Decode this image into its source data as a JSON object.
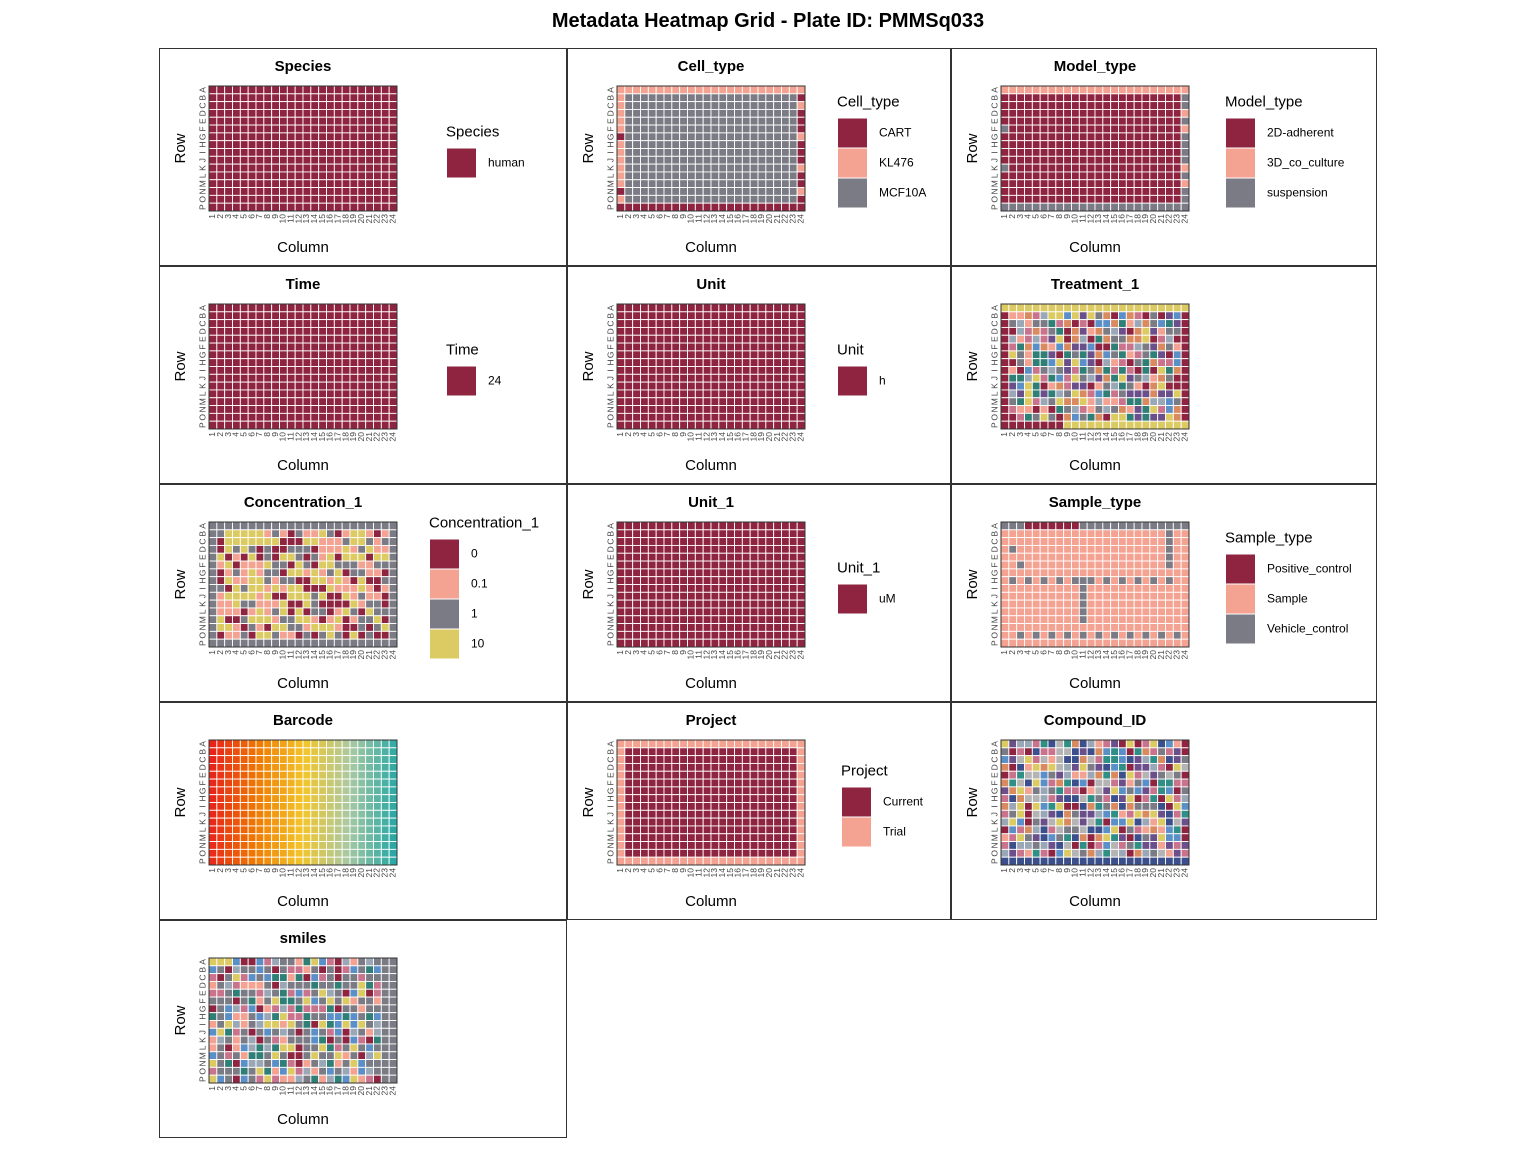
{
  "title": "Metadata Heatmap Grid - Plate ID: PMMSq033",
  "rows": [
    "A",
    "B",
    "C",
    "D",
    "E",
    "F",
    "G",
    "H",
    "I",
    "J",
    "K",
    "L",
    "M",
    "N",
    "O",
    "P"
  ],
  "columns": [
    "1",
    "2",
    "3",
    "4",
    "5",
    "6",
    "7",
    "8",
    "9",
    "10",
    "11",
    "12",
    "13",
    "14",
    "15",
    "16",
    "17",
    "18",
    "19",
    "20",
    "21",
    "22",
    "23",
    "24"
  ],
  "colors": {
    "primary": "#8e2440",
    "secondary": "#f4a291",
    "tertiary": "#7b7b85",
    "quaternary": "#dccb62"
  },
  "chart_data": [
    {
      "type": "heatmap",
      "title": "Species",
      "xlabel": "Column",
      "ylabel": "Row",
      "pattern": "solid",
      "legend_title": "Species",
      "legend": [
        {
          "label": "human",
          "color": "#8e2440"
        }
      ]
    },
    {
      "type": "heatmap",
      "title": "Cell_type",
      "xlabel": "Column",
      "ylabel": "Row",
      "pattern": "celltype",
      "legend_title": "Cell_type",
      "legend": [
        {
          "label": "CART",
          "color": "#8e2440"
        },
        {
          "label": "KL476",
          "color": "#f4a291"
        },
        {
          "label": "MCF10A",
          "color": "#7b7b85"
        }
      ]
    },
    {
      "type": "heatmap",
      "title": "Model_type",
      "xlabel": "Column",
      "ylabel": "Row",
      "pattern": "modeltype",
      "legend_title": "Model_type",
      "legend": [
        {
          "label": "2D-adherent",
          "color": "#8e2440"
        },
        {
          "label": "3D_co_culture",
          "color": "#f4a291"
        },
        {
          "label": "suspension",
          "color": "#7b7b85"
        }
      ]
    },
    {
      "type": "heatmap",
      "title": "Time",
      "xlabel": "Column",
      "ylabel": "Row",
      "pattern": "solid",
      "legend_title": "Time",
      "legend": [
        {
          "label": "24",
          "color": "#8e2440"
        }
      ]
    },
    {
      "type": "heatmap",
      "title": "Unit",
      "xlabel": "Column",
      "ylabel": "Row",
      "pattern": "solid",
      "legend_title": "Unit",
      "legend": [
        {
          "label": "h",
          "color": "#8e2440"
        }
      ]
    },
    {
      "type": "heatmap",
      "title": "Treatment_1",
      "xlabel": "Column",
      "ylabel": "Row",
      "pattern": "treatment",
      "palette": [
        "#8e2440",
        "#f4a291",
        "#7b7b85",
        "#dccb62",
        "#5b8fc7",
        "#2f7f76",
        "#c9748c",
        "#9aa7b6",
        "#d98a5f",
        "#6a4f8a"
      ]
    },
    {
      "type": "heatmap",
      "title": "Concentration_1",
      "xlabel": "Column",
      "ylabel": "Row",
      "pattern": "concentration",
      "legend_title": "Concentration_1",
      "legend": [
        {
          "label": "0",
          "color": "#8e2440"
        },
        {
          "label": "0.1",
          "color": "#f4a291"
        },
        {
          "label": "1",
          "color": "#7b7b85"
        },
        {
          "label": "10",
          "color": "#dccb62"
        }
      ]
    },
    {
      "type": "heatmap",
      "title": "Unit_1",
      "xlabel": "Column",
      "ylabel": "Row",
      "pattern": "solid",
      "legend_title": "Unit_1",
      "legend": [
        {
          "label": "uM",
          "color": "#8e2440"
        }
      ]
    },
    {
      "type": "heatmap",
      "title": "Sample_type",
      "xlabel": "Column",
      "ylabel": "Row",
      "pattern": "sampletype",
      "legend_title": "Sample_type",
      "legend": [
        {
          "label": "Positive_control",
          "color": "#8e2440"
        },
        {
          "label": "Sample",
          "color": "#f4a291"
        },
        {
          "label": "Vehicle_control",
          "color": "#7b7b85"
        }
      ]
    },
    {
      "type": "heatmap",
      "title": "Barcode",
      "xlabel": "Column",
      "ylabel": "Row",
      "pattern": "gradient",
      "gradient": [
        "#e8231a",
        "#f07a00",
        "#f2c62a",
        "#a9c9a3",
        "#2aa8a5"
      ]
    },
    {
      "type": "heatmap",
      "title": "Project",
      "xlabel": "Column",
      "ylabel": "Row",
      "pattern": "project",
      "legend_title": "Project",
      "legend": [
        {
          "label": "Current",
          "color": "#8e2440"
        },
        {
          "label": "Trial",
          "color": "#f4a291"
        }
      ]
    },
    {
      "type": "heatmap",
      "title": "Compound_ID",
      "xlabel": "Column",
      "ylabel": "Row",
      "pattern": "compound",
      "palette": [
        "#3a4f8c",
        "#8e2440",
        "#f4a291",
        "#7b7b85",
        "#dccb62",
        "#2f8f86",
        "#c9748c",
        "#9aa7b6",
        "#5b8fc7",
        "#d98a5f",
        "#6a4f8a",
        "#b4b4b4"
      ]
    },
    {
      "type": "heatmap",
      "title": "smiles",
      "xlabel": "Column",
      "ylabel": "Row",
      "pattern": "smiles",
      "palette": [
        "#7b7b85",
        "#7b7b85",
        "#7b7b85",
        "#dccb62",
        "#f4a291",
        "#8e2440",
        "#c9748c",
        "#5b8fc7",
        "#2f7f76",
        "#9aa7b6"
      ]
    }
  ]
}
